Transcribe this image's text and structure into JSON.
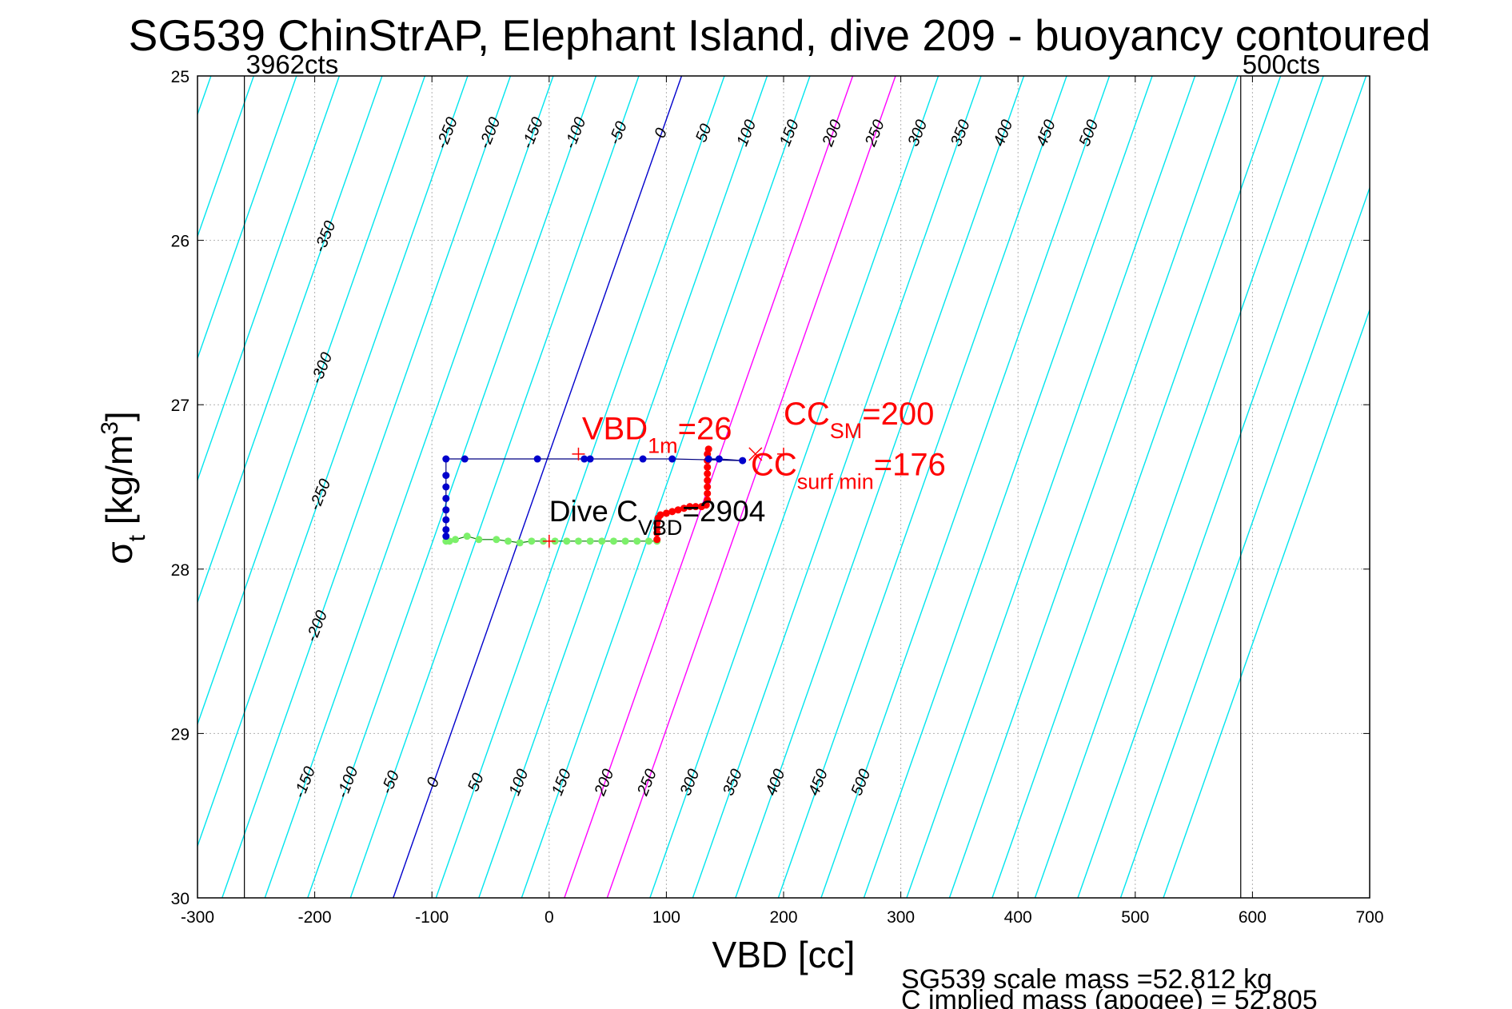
{
  "chart_data": {
    "type": "scatter",
    "title": "SG539 ChinStrAP, Elephant Island, dive 209 - buoyancy contoured",
    "xlabel": "VBD [cc]",
    "ylabel": "σt [kg/m3]",
    "xlim": [
      -300,
      700
    ],
    "ylim": [
      25,
      30
    ],
    "y_reversed": true,
    "grid": true,
    "xticks": [
      "-300",
      "-200",
      "-100",
      "0",
      "100",
      "200",
      "300",
      "400",
      "500",
      "600",
      "700"
    ],
    "yticks": [
      "25",
      "26",
      "27",
      "28",
      "29",
      "30"
    ],
    "contour_top_labels": [
      "-350",
      "-300",
      "-250",
      "-200",
      "-150",
      "-100",
      "-50",
      "0",
      "50",
      "100",
      "150",
      "200",
      "250",
      "300",
      "350",
      "400",
      "450",
      "500"
    ],
    "contour_bottom_labels": [
      "-150",
      "-100",
      "-50",
      "0",
      "50",
      "100",
      "150",
      "200",
      "250",
      "300",
      "350",
      "400",
      "450",
      "500"
    ],
    "count_lines": [
      {
        "label": "3962cts",
        "x": -260
      },
      {
        "label": "500cts",
        "x": 590
      }
    ],
    "highlight_contours": [
      0,
      200,
      250
    ],
    "colors": {
      "contour": "#00e5ee",
      "zero_contour": "#0000cc",
      "highlight_contour": "#ff00ff",
      "annotation": "#ff0000",
      "grid": "#b0b0b0"
    },
    "series": [
      {
        "points": [
          [
            -88,
            27.83
          ],
          [
            -85,
            27.83
          ],
          [
            -80,
            27.82
          ],
          [
            -70,
            27.8
          ],
          [
            -60,
            27.82
          ],
          [
            -45,
            27.82
          ],
          [
            -35,
            27.83
          ],
          [
            -25,
            27.84
          ],
          [
            -15,
            27.83
          ],
          [
            -5,
            27.83
          ],
          [
            5,
            27.83
          ],
          [
            15,
            27.83
          ],
          [
            25,
            27.83
          ],
          [
            35,
            27.83
          ],
          [
            45,
            27.83
          ],
          [
            55,
            27.83
          ],
          [
            65,
            27.83
          ],
          [
            75,
            27.83
          ],
          [
            85,
            27.83
          ],
          [
            92,
            27.83
          ]
        ]
      },
      {
        "points": [
          [
            92,
            27.82
          ],
          [
            92,
            27.78
          ],
          [
            92,
            27.75
          ],
          [
            92,
            27.72
          ],
          [
            93,
            27.69
          ],
          [
            95,
            27.67
          ],
          [
            100,
            27.66
          ],
          [
            105,
            27.65
          ],
          [
            110,
            27.64
          ],
          [
            115,
            27.63
          ],
          [
            120,
            27.62
          ],
          [
            125,
            27.62
          ],
          [
            130,
            27.62
          ],
          [
            134,
            27.61
          ],
          [
            135,
            27.58
          ],
          [
            135,
            27.54
          ],
          [
            135,
            27.5
          ],
          [
            135,
            27.46
          ],
          [
            135,
            27.42
          ],
          [
            135,
            27.38
          ],
          [
            135,
            27.34
          ],
          [
            135,
            27.3
          ],
          [
            136,
            27.27
          ]
        ]
      },
      {
        "points": [
          [
            136,
            27.33
          ],
          [
            145,
            27.33
          ],
          [
            165,
            27.34
          ],
          [
            105,
            27.33
          ],
          [
            80,
            27.33
          ],
          [
            35,
            27.33
          ],
          [
            30,
            27.33
          ],
          [
            -10,
            27.33
          ],
          [
            -72,
            27.33
          ],
          [
            -88,
            27.33
          ],
          [
            -88,
            27.43
          ],
          [
            -88,
            27.5
          ],
          [
            -88,
            27.57
          ],
          [
            -88,
            27.64
          ],
          [
            -88,
            27.7
          ],
          [
            -88,
            27.76
          ],
          [
            -88,
            27.8
          ]
        ]
      }
    ],
    "markers": [
      {
        "type": "plus",
        "x": 25,
        "y": 27.3
      },
      {
        "type": "cross",
        "x": 176,
        "y": 27.3
      },
      {
        "type": "plus",
        "x": 200,
        "y": 27.3
      },
      {
        "type": "plus",
        "x": 0,
        "y": 27.83
      }
    ],
    "annotations": [
      {
        "main": "VBD",
        "sub": "1m",
        "tail": "=26",
        "x": 28,
        "y": 27.21,
        "color": "red"
      },
      {
        "main": "CC",
        "sub": "SM",
        "tail": "=200",
        "x": 200,
        "y": 27.12,
        "color": "red"
      },
      {
        "main": "CC",
        "sub": "surf min",
        "tail": "=176",
        "x": 172,
        "y": 27.43,
        "color": "red"
      },
      {
        "main": "Dive C",
        "sub": "VBD",
        "tail": "=2904",
        "x": 0,
        "y": 27.71,
        "color": "black"
      }
    ],
    "footer": [
      "SG539 scale mass =52.812 kg",
      "C      implied mass (apogee) = 52.805"
    ]
  }
}
